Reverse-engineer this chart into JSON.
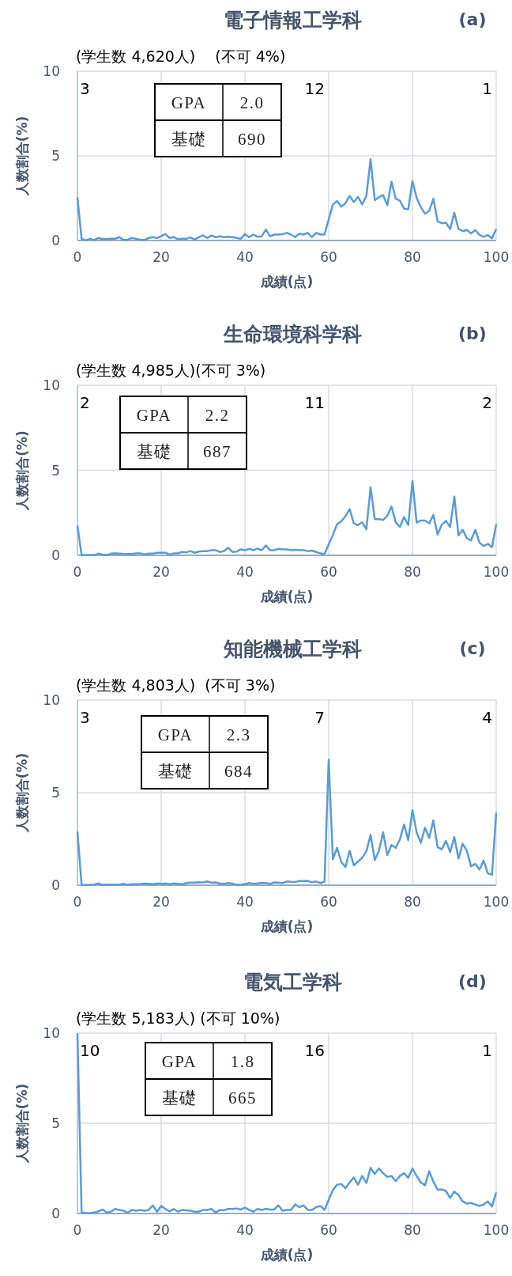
{
  "chart_data": [
    {
      "type": "line",
      "title": "電子情報工学科",
      "subtitle": "(学生数 4,620人)　 (不可 4%)",
      "xlabel": "成績(点)",
      "ylabel": "人数割合(%)",
      "annotations": [
        "(a)",
        "GPA",
        "2.0",
        "基礎",
        "690",
        "3",
        "12",
        "1"
      ],
      "series": [
        {
          "color": "#5b9bd5",
          "x": [
            0,
            1,
            2,
            3,
            4,
            5,
            6,
            7,
            8,
            9,
            10,
            11,
            12,
            13,
            14,
            15,
            16,
            17,
            18,
            19,
            20,
            21,
            22,
            23,
            24,
            25,
            26,
            27,
            28,
            29,
            30,
            31,
            32,
            33,
            34,
            35,
            36,
            37,
            38,
            39,
            40,
            41,
            42,
            43,
            44,
            45,
            46,
            47,
            48,
            49,
            50,
            51,
            52,
            53,
            54,
            55,
            56,
            57,
            58,
            59,
            61,
            62,
            63,
            64,
            65,
            66,
            67,
            68,
            69,
            70,
            71,
            72,
            73,
            74,
            75,
            76,
            77,
            78,
            79,
            80,
            81,
            82,
            83,
            84,
            85,
            86,
            87,
            88,
            89,
            90,
            91,
            92,
            93,
            94,
            95,
            96,
            97,
            98,
            99,
            100
          ],
          "values": [
            2.55,
            0.1,
            0.02,
            0.1,
            0.03,
            0.15,
            0.08,
            0.08,
            0.1,
            0.1,
            0.2,
            0.03,
            0.05,
            0.15,
            0.1,
            0.05,
            0.03,
            0.15,
            0.2,
            0.15,
            0.25,
            0.38,
            0.15,
            0.2,
            0.08,
            0.1,
            0.1,
            0.18,
            0.05,
            0.2,
            0.3,
            0.15,
            0.3,
            0.2,
            0.25,
            0.2,
            0.22,
            0.2,
            0.15,
            0.1,
            0.38,
            0.2,
            0.35,
            0.22,
            0.25,
            0.65,
            0.25,
            0.35,
            0.35,
            0.37,
            0.45,
            0.35,
            0.2,
            0.4,
            0.35,
            0.45,
            0.2,
            0.45,
            0.35,
            0.35,
            2.13,
            2.33,
            2.0,
            2.2,
            2.63,
            2.27,
            2.58,
            2.13,
            2.63,
            4.8,
            2.38,
            2.55,
            2.68,
            2.08,
            3.47,
            2.47,
            2.35,
            1.88,
            1.85,
            3.5,
            2.52,
            1.97,
            1.58,
            1.75,
            2.47,
            1.13,
            1.02,
            1.05,
            0.67,
            1.63,
            0.68,
            0.55,
            0.62,
            0.42,
            0.62,
            0.33,
            0.22,
            0.32,
            0.13,
            0.68
          ]
        }
      ],
      "xlim": [
        0,
        100
      ],
      "xticks": [
        0,
        20,
        40,
        60,
        80,
        100
      ],
      "ylim": [
        0,
        10
      ],
      "yticks": [
        0,
        5,
        10
      ],
      "grid": true
    },
    {
      "type": "line",
      "title": "生命環境科学科",
      "subtitle": "(学生数 4,985人)(不可 3%)",
      "xlabel": "成績(点)",
      "ylabel": "人数割合(%)",
      "annotations": [
        "(b)",
        "GPA",
        "2.2",
        "基礎",
        "687",
        "2",
        "11",
        "2"
      ],
      "series": [
        {
          "color": "#5b9bd5",
          "x": [
            0,
            1,
            2,
            3,
            4,
            5,
            6,
            7,
            8,
            9,
            10,
            11,
            12,
            13,
            14,
            15,
            16,
            17,
            18,
            19,
            20,
            21,
            22,
            23,
            24,
            25,
            26,
            27,
            28,
            29,
            30,
            31,
            32,
            33,
            34,
            35,
            36,
            37,
            38,
            39,
            40,
            41,
            42,
            43,
            44,
            45,
            46,
            47,
            48,
            49,
            50,
            51,
            52,
            53,
            54,
            55,
            56,
            57,
            58,
            59,
            61,
            62,
            63,
            64,
            65,
            66,
            67,
            68,
            69,
            70,
            71,
            72,
            73,
            74,
            75,
            76,
            77,
            78,
            79,
            80,
            81,
            82,
            83,
            84,
            85,
            86,
            87,
            88,
            89,
            90,
            91,
            92,
            93,
            94,
            95,
            96,
            97,
            98,
            99,
            100
          ],
          "values": [
            1.75,
            0.02,
            0.02,
            0.02,
            0.02,
            0.1,
            0.05,
            0.02,
            0.1,
            0.12,
            0.1,
            0.08,
            0.08,
            0.08,
            0.12,
            0.12,
            0.05,
            0.1,
            0.1,
            0.15,
            0.15,
            0.15,
            0.05,
            0.12,
            0.12,
            0.2,
            0.18,
            0.25,
            0.15,
            0.22,
            0.25,
            0.25,
            0.3,
            0.3,
            0.2,
            0.25,
            0.45,
            0.2,
            0.22,
            0.35,
            0.3,
            0.38,
            0.3,
            0.4,
            0.3,
            0.58,
            0.3,
            0.3,
            0.38,
            0.35,
            0.35,
            0.3,
            0.32,
            0.3,
            0.3,
            0.25,
            0.28,
            0.2,
            0.12,
            0.08,
            1.2,
            1.83,
            2.0,
            2.3,
            2.72,
            1.88,
            1.78,
            1.95,
            1.53,
            4.0,
            2.13,
            2.13,
            2.08,
            2.33,
            2.87,
            1.95,
            1.67,
            2.25,
            1.78,
            4.37,
            1.92,
            2.05,
            2.05,
            1.88,
            2.38,
            1.22,
            1.8,
            2.03,
            1.67,
            3.45,
            1.17,
            1.5,
            1.0,
            0.88,
            1.5,
            0.75,
            0.55,
            0.67,
            0.48,
            1.83
          ]
        }
      ],
      "xlim": [
        0,
        100
      ],
      "xticks": [
        0,
        20,
        40,
        60,
        80,
        100
      ],
      "ylim": [
        0,
        10
      ],
      "yticks": [
        0,
        5,
        10
      ],
      "grid": true
    },
    {
      "type": "line",
      "title": "知能機械工学科",
      "subtitle": "(学生数 4,803人)  (不可 3%)",
      "xlabel": "成績(点)",
      "ylabel": "人数割合(%)",
      "annotations": [
        "(c)",
        "GPA",
        "2.3",
        "基礎",
        "684",
        "3",
        "7",
        "4"
      ],
      "x": [
        0,
        1,
        2,
        3,
        4,
        5,
        6,
        7,
        8,
        9,
        10,
        11,
        12,
        13,
        14,
        15,
        16,
        17,
        18,
        19,
        20,
        21,
        22,
        23,
        24,
        25,
        26,
        27,
        28,
        29,
        30,
        31,
        32,
        33,
        34,
        35,
        36,
        37,
        38,
        39,
        40,
        41,
        42,
        43,
        44,
        45,
        46,
        47,
        48,
        49,
        50,
        51,
        52,
        53,
        54,
        55,
        56,
        57,
        58,
        59,
        60,
        61,
        62,
        63,
        64,
        65,
        66,
        67,
        68,
        69,
        70,
        71,
        72,
        73,
        74,
        75,
        76,
        77,
        78,
        79,
        80,
        81,
        82,
        83,
        84,
        85,
        86,
        87,
        88,
        89,
        90,
        91,
        92,
        93,
        94,
        95,
        96,
        97,
        98,
        99,
        100
      ],
      "series": [
        {
          "color": "#5b9bd5",
          "values": [
            2.9,
            0.02,
            0.01,
            0.02,
            0.03,
            0.1,
            0.02,
            0.03,
            0.03,
            0.03,
            0.03,
            0.08,
            0.02,
            0.05,
            0.05,
            0.06,
            0.09,
            0.07,
            0.05,
            0.1,
            0.08,
            0.1,
            0.05,
            0.1,
            0.07,
            0.05,
            0.12,
            0.14,
            0.14,
            0.16,
            0.15,
            0.2,
            0.14,
            0.15,
            0.1,
            0.07,
            0.12,
            0.09,
            0.02,
            0.02,
            0.06,
            0.12,
            0.08,
            0.1,
            0.13,
            0.12,
            0.08,
            0.15,
            0.14,
            0.12,
            0.2,
            0.18,
            0.17,
            0.23,
            0.22,
            0.23,
            0.16,
            0.2,
            0.12,
            0.18,
            6.78,
            1.4,
            2.02,
            1.25,
            0.98,
            1.86,
            1.07,
            1.28,
            1.48,
            1.83,
            2.72,
            1.36,
            1.86,
            2.85,
            1.63,
            2.17,
            2.02,
            2.47,
            3.28,
            2.44,
            4.05,
            2.85,
            2.29,
            3.11,
            2.55,
            3.5,
            2.06,
            1.94,
            2.4,
            1.79,
            2.6,
            1.44,
            2.24,
            1.86,
            1.02,
            1.15,
            0.84,
            1.33,
            0.64,
            0.56,
            3.92
          ]
        }
      ],
      "xlim": [
        0,
        100
      ],
      "xticks": [
        0,
        20,
        40,
        60,
        80,
        100
      ],
      "ylim": [
        0,
        10
      ],
      "yticks": [
        0,
        5,
        10
      ],
      "grid": true
    },
    {
      "type": "line",
      "title": "電気工学科",
      "subtitle": "(学生数 5,183人) (不可 10%)",
      "xlabel": "成績(点)",
      "ylabel": "人数割合(%)",
      "annotations": [
        "(d)",
        "GPA",
        "1.8",
        "基礎",
        "665",
        "10",
        "16",
        "1"
      ],
      "series": [
        {
          "color": "#5b9bd5",
          "x": [
            0,
            1,
            2,
            3,
            4,
            5,
            6,
            7,
            8,
            9,
            10,
            11,
            12,
            13,
            14,
            15,
            16,
            17,
            18,
            19,
            20,
            21,
            22,
            23,
            24,
            25,
            26,
            27,
            28,
            29,
            30,
            31,
            32,
            33,
            34,
            35,
            36,
            37,
            38,
            39,
            40,
            41,
            42,
            43,
            44,
            45,
            46,
            47,
            48,
            49,
            50,
            51,
            52,
            53,
            54,
            55,
            56,
            57,
            58,
            59,
            61,
            62,
            63,
            64,
            65,
            66,
            67,
            68,
            69,
            70,
            71,
            72,
            73,
            74,
            75,
            76,
            77,
            78,
            79,
            80,
            81,
            82,
            83,
            84,
            85,
            86,
            87,
            88,
            89,
            90,
            91,
            92,
            93,
            94,
            95,
            96,
            97,
            98,
            99,
            100
          ],
          "values": [
            10,
            0.05,
            0.03,
            0.02,
            0.05,
            0.12,
            0.22,
            0.05,
            0.1,
            0.25,
            0.2,
            0.15,
            0.05,
            0.2,
            0.15,
            0.2,
            0.15,
            0.2,
            0.45,
            0.1,
            0.42,
            0.25,
            0.12,
            0.25,
            0.1,
            0.2,
            0.18,
            0.15,
            0.1,
            0.1,
            0.2,
            0.2,
            0.25,
            0.05,
            0.2,
            0.18,
            0.25,
            0.25,
            0.28,
            0.22,
            0.32,
            0.2,
            0.1,
            0.25,
            0.2,
            0.25,
            0.22,
            0.22,
            0.45,
            0.15,
            0.2,
            0.2,
            0.5,
            0.35,
            0.45,
            0.2,
            0.2,
            0.35,
            0.42,
            0.2,
            1.3,
            1.6,
            1.64,
            1.4,
            1.72,
            2.0,
            1.6,
            2.08,
            1.69,
            2.53,
            2.19,
            2.5,
            2.23,
            2.03,
            2.08,
            1.8,
            2.08,
            2.23,
            1.98,
            2.5,
            2.08,
            1.72,
            1.56,
            2.34,
            1.77,
            1.33,
            1.33,
            1.25,
            0.86,
            1.22,
            1.02,
            0.67,
            0.55,
            0.59,
            0.5,
            0.42,
            0.5,
            0.67,
            0.39,
            1.17
          ]
        }
      ],
      "xlim": [
        0,
        100
      ],
      "xticks": [
        0,
        20,
        40,
        60,
        80,
        100
      ],
      "ylim": [
        0,
        10
      ],
      "yticks": [
        0,
        5,
        10
      ],
      "grid": true
    }
  ]
}
